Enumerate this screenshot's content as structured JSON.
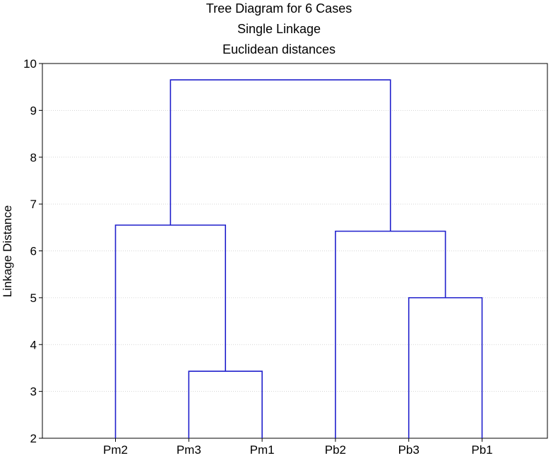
{
  "chart_data": {
    "type": "dendrogram",
    "title_lines": [
      "Tree Diagram for 6 Cases",
      "Single Linkage",
      "Euclidean distances"
    ],
    "ylabel": "Linkage Distance",
    "xlabel": "",
    "ylim": [
      2,
      10
    ],
    "yticks": [
      2,
      3,
      4,
      5,
      6,
      7,
      8,
      9,
      10
    ],
    "grid": true,
    "line_color": "#1f1fcc",
    "leaves": [
      "Pm2",
      "Pm3",
      "Pm1",
      "Pb2",
      "Pb3",
      "Pb1"
    ],
    "merges": [
      {
        "id": "c1",
        "left": "Pm3",
        "right": "Pm1",
        "height": 3.43
      },
      {
        "id": "c2",
        "left": "Pb3",
        "right": "Pb1",
        "height": 5.0
      },
      {
        "id": "c3",
        "left": "Pm2",
        "right": "c1",
        "height": 6.55
      },
      {
        "id": "c4",
        "left": "Pb2",
        "right": "c2",
        "height": 6.42
      },
      {
        "id": "c5",
        "left": "c3",
        "right": "c4",
        "height": 9.65
      }
    ]
  }
}
